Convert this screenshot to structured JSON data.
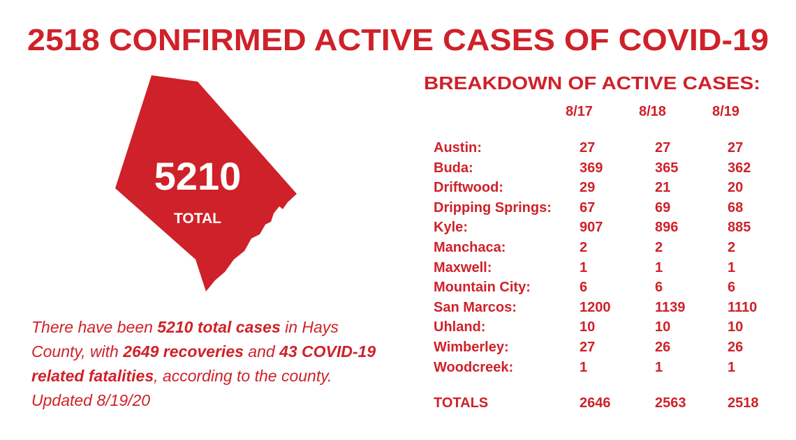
{
  "header": {
    "title": "2518 CONFIRMED ACTIVE CASES OF COVID-19"
  },
  "map": {
    "value": "5210",
    "label": "TOTAL"
  },
  "note": {
    "segments": [
      {
        "text": "There have been ",
        "bold": false
      },
      {
        "text": "5210 total cases",
        "bold": true
      },
      {
        "text": " in Hays County, with ",
        "bold": false
      },
      {
        "text": "2649 recoveries",
        "bold": true
      },
      {
        "text": " and ",
        "bold": false
      },
      {
        "text": "43 COVID-19 related fatalities",
        "bold": true
      },
      {
        "text": ", according to the county. Updated 8/19/20",
        "bold": false
      }
    ]
  },
  "table": {
    "title": "BREAKDOWN OF ACTIVE CASES:",
    "columns": [
      "8/17",
      "8/18",
      "8/19"
    ],
    "rows": [
      [
        "Austin:",
        27,
        27,
        27
      ],
      [
        "Buda:",
        369,
        365,
        362
      ],
      [
        "Driftwood:",
        29,
        21,
        20
      ],
      [
        "Dripping Springs:",
        67,
        69,
        68
      ],
      [
        "Kyle:",
        907,
        896,
        885
      ],
      [
        "Manchaca:",
        2,
        2,
        2
      ],
      [
        "Maxwell:",
        1,
        1,
        1
      ],
      [
        "Mountain City:",
        6,
        6,
        6
      ],
      [
        "San Marcos:",
        1200,
        1139,
        1110
      ],
      [
        "Uhland:",
        10,
        10,
        10
      ],
      [
        "Wimberley:",
        27,
        26,
        26
      ],
      [
        "Woodcreek:",
        1,
        1,
        1
      ]
    ],
    "totals": [
      "TOTALS",
      2646,
      2563,
      2518
    ]
  }
}
